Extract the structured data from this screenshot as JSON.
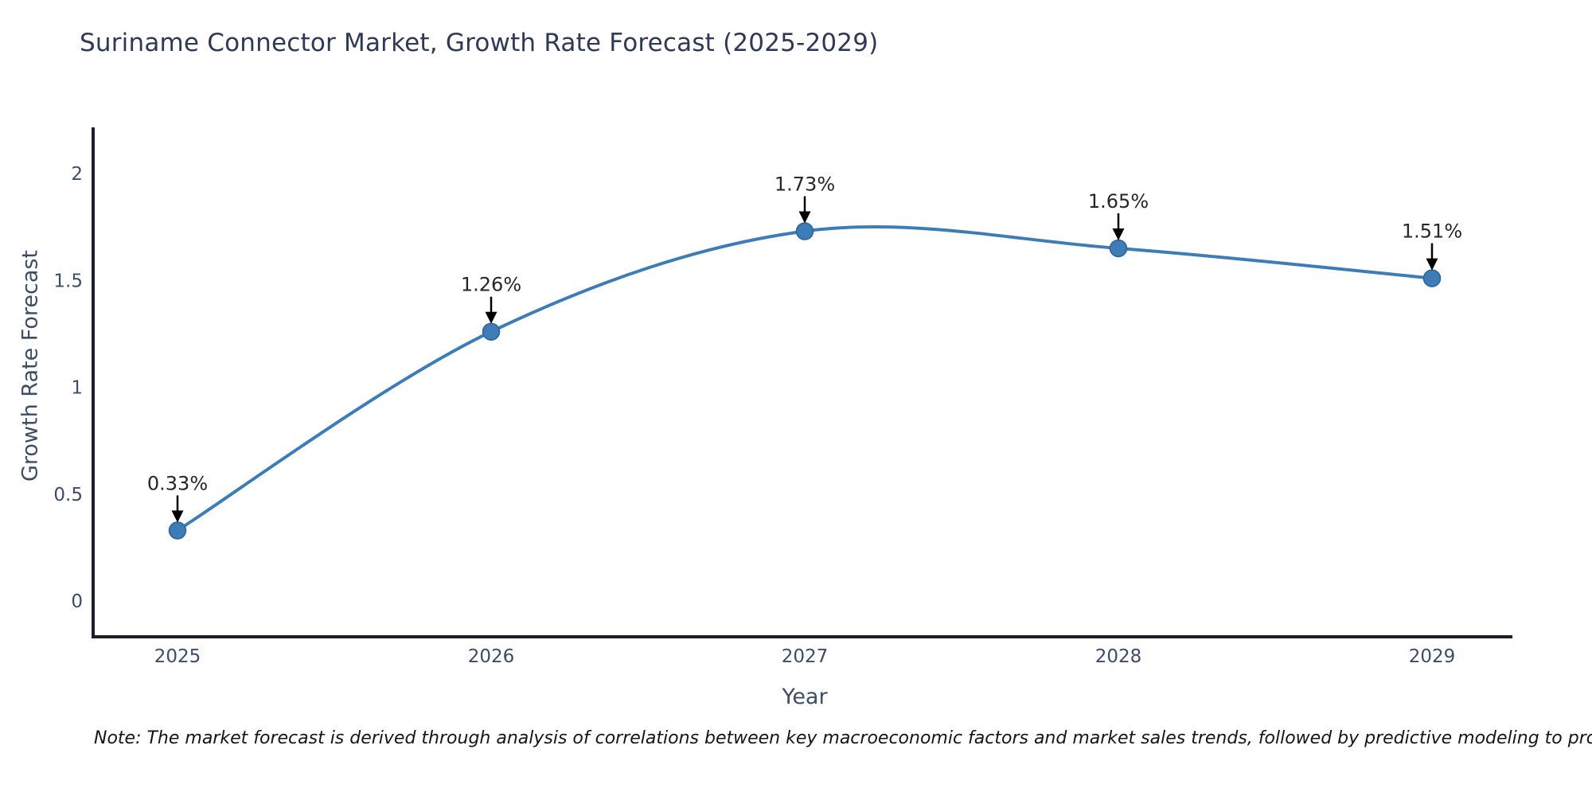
{
  "note": "Note: The market forecast is derived through analysis of correlations between key macroeconomic factors and market sales trends, followed by predictive modeling to project future sales",
  "chart_data": {
    "type": "line",
    "title": "Suriname Connector Market, Growth Rate Forecast (2025-2029)",
    "x": [
      2025,
      2026,
      2027,
      2028,
      2029
    ],
    "series": [
      {
        "name": "Growth Rate Forecast",
        "values": [
          0.33,
          1.26,
          1.73,
          1.65,
          1.51
        ]
      }
    ],
    "point_labels": [
      "0.33%",
      "1.26%",
      "1.73%",
      "1.65%",
      "1.51%"
    ],
    "xlabel": "Year",
    "ylabel": "Growth Rate Forecast",
    "xticks": [
      "2025",
      "2026",
      "2027",
      "2028",
      "2029"
    ],
    "yticks": [
      0,
      0.5,
      1,
      1.5,
      2
    ],
    "ytick_labels": [
      "0",
      "0.5",
      "1",
      "1.5",
      "2"
    ],
    "ylim": [
      -0.17,
      2.21
    ],
    "grid": false,
    "legend": false,
    "curve": "smooth",
    "colors": {
      "line": "#3e7cb7",
      "marker_fill": "#3e7cb7",
      "marker_edge": "#2e6296",
      "axis_spine": "#1b1f29",
      "tick_label": "#3e4c66",
      "annotation_text": "#262626",
      "annotation_arrow": "#000000",
      "title_text": "#2e3a54"
    }
  }
}
